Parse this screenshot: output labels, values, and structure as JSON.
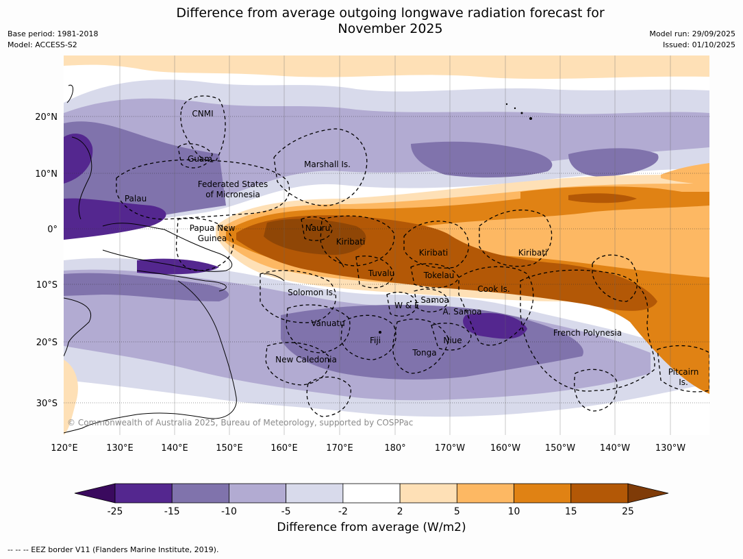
{
  "title_line1": "Difference from average outgoing longwave radiation forecast for",
  "title_line2": "November 2025",
  "base_period": "Base period: 1981-2018",
  "model": "Model: ACCESS-S2",
  "model_run": "Model run: 29/09/2025",
  "issued": "Issued: 01/10/2025",
  "copyright": "© Commonwealth of Australia 2025, Bureau of Meteorology, supported by COSPPac",
  "lat_ticks": [
    "20°N",
    "10°N",
    "0°",
    "10°S",
    "20°S",
    "30°S"
  ],
  "lon_ticks": [
    "120°E",
    "130°E",
    "140°E",
    "150°E",
    "160°E",
    "170°E",
    "180°",
    "170°W",
    "160°W",
    "150°W",
    "140°W",
    "130°W"
  ],
  "regions": {
    "cnmi": "CNMI",
    "guam": "Guam",
    "marshall": "Marshall Is.",
    "fsm_1": "Federated States",
    "fsm_2": "of Micronesia",
    "palau": "Palau",
    "png_1": "Papua New",
    "png_2": "Guinea",
    "nauru": "Nauru",
    "kiribati_w": "Kiribati",
    "kiribati_c": "Kiribati",
    "kiribati_e": "Kiribati",
    "tuvalu": "Tuvalu",
    "tokelau": "Tokelau",
    "cook": "Cook Is.",
    "solomon": "Solomon Is.",
    "wf": "W & F",
    "samoa": "Samoa",
    "asamoa": "A. Samoa",
    "vanuatu": "Vanuatu",
    "fiji": "Fiji",
    "niue": "Niue",
    "tonga": "Tonga",
    "french_polynesia": "French Polynesia",
    "new_caledonia": "New Caledonia",
    "pitcairn_1": "Pitcairn",
    "pitcairn_2": "Is."
  },
  "colorbar": {
    "title": "Difference from average (W/m2)",
    "ticks": [
      "-25",
      "-15",
      "-10",
      "-5",
      "-2",
      "2",
      "5",
      "10",
      "15",
      "25"
    ],
    "colors": [
      "#3a0a5e",
      "#54278f",
      "#8073ac",
      "#b2abd2",
      "#d8daeb",
      "#ffffff",
      "#fee0b6",
      "#fdb863",
      "#e08214",
      "#b35806",
      "#7f3b08"
    ]
  },
  "footer": "--  --  -- EEZ border V11 (Flanders Marine Institute, 2019)."
}
